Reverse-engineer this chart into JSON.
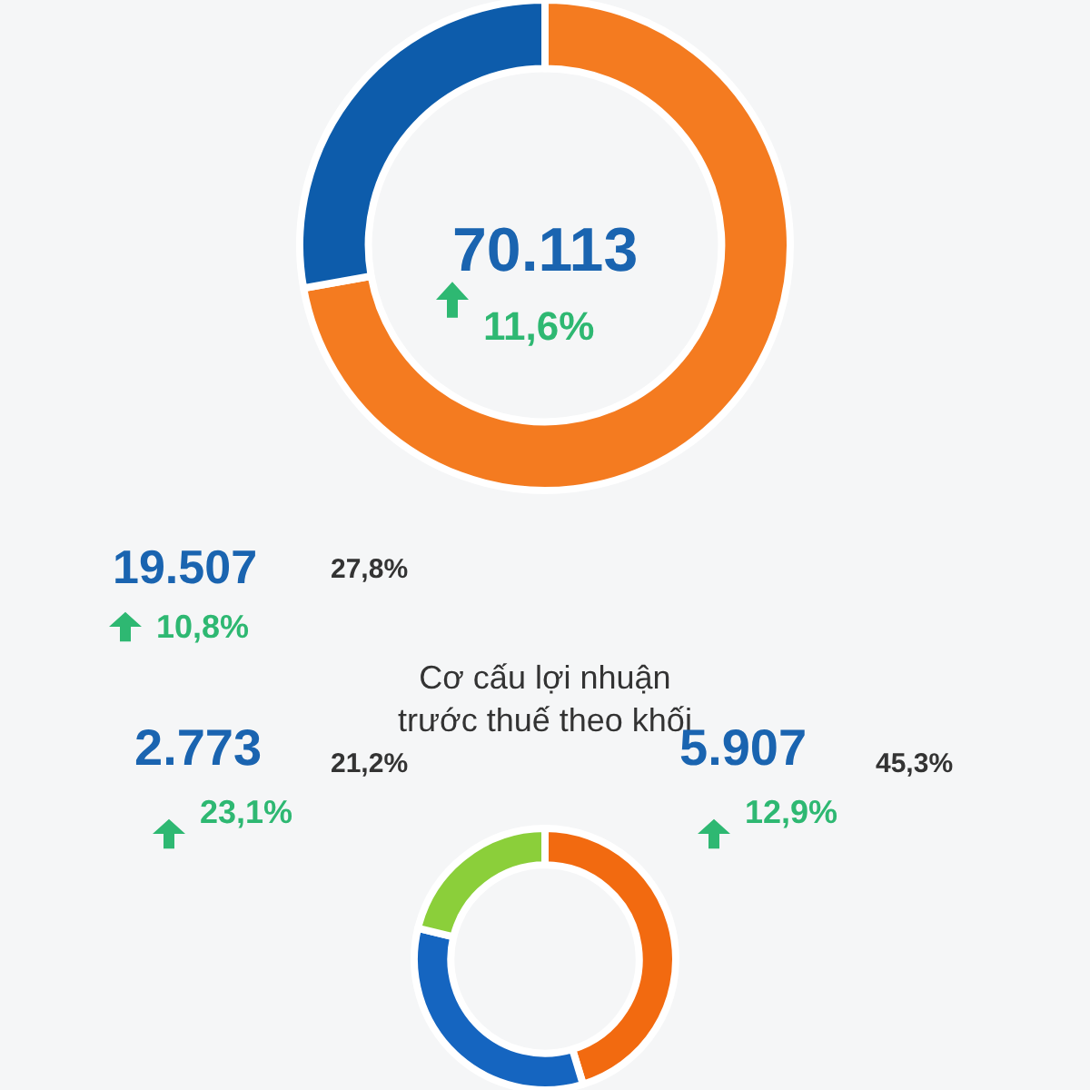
{
  "chart_data": [
    {
      "type": "donut",
      "categories": [
        null,
        null
      ],
      "values": [
        72.2,
        27.8
      ],
      "colors": [
        "#f47b20",
        "#0d5cab"
      ],
      "annotations": [
        "70.113",
        "11,6%",
        "19.507",
        "27,8%",
        "10,8%"
      ]
    },
    {
      "type": "donut",
      "title": "Cơ cấu lợi nhuận\ntrước thuế theo khối",
      "categories": [
        null,
        null,
        null
      ],
      "values": [
        45.3,
        33.5,
        21.2
      ],
      "colors": [
        "#f26a10",
        "#1565c0",
        "#8bcf3a"
      ],
      "annotations": [
        "5.907",
        "45,3%",
        "12,9%",
        "2.773",
        "21,2%",
        "23,1%"
      ]
    }
  ]
}
